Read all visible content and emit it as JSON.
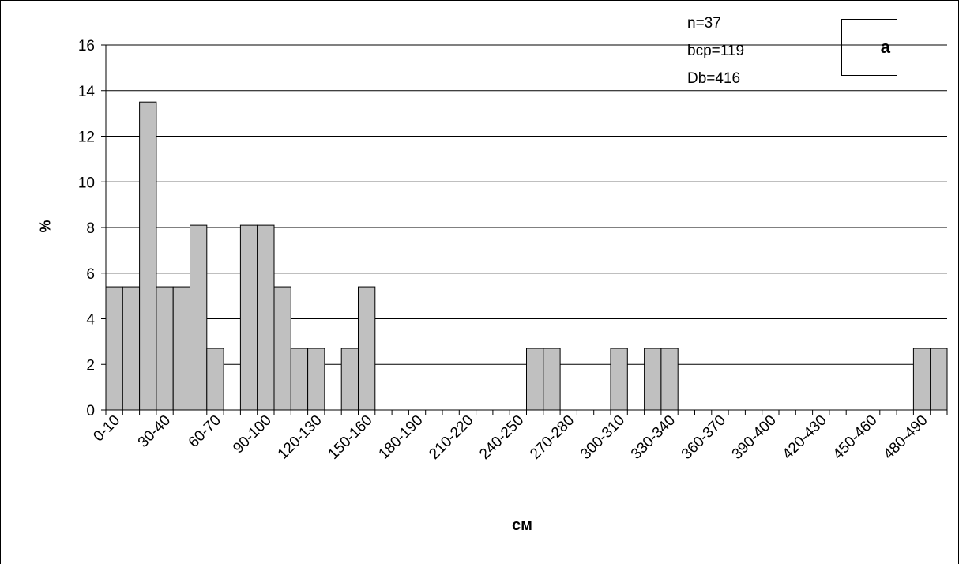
{
  "chart_data": {
    "type": "bar",
    "title": "",
    "xlabel": "см",
    "ylabel": "%",
    "ylim": [
      0,
      16
    ],
    "yticks": [
      0,
      2,
      4,
      6,
      8,
      10,
      12,
      14,
      16
    ],
    "grid": true,
    "categories": [
      "0-10",
      "10-20",
      "20-30",
      "30-40",
      "40-50",
      "50-60",
      "60-70",
      "70-80",
      "80-90",
      "90-100",
      "100-110",
      "110-120",
      "120-130",
      "130-140",
      "140-150",
      "150-160",
      "160-170",
      "170-180",
      "180-190",
      "190-200",
      "200-210",
      "210-220",
      "220-230",
      "230-240",
      "240-250",
      "250-260",
      "260-270",
      "270-280",
      "280-290",
      "290-300",
      "300-310",
      "310-320",
      "320-330",
      "330-340",
      "340-350",
      "350-360",
      "360-370",
      "370-380",
      "380-390",
      "390-400",
      "400-410",
      "410-420",
      "420-430",
      "430-440",
      "440-450",
      "450-460",
      "460-470",
      "470-480",
      "480-490",
      "490-500"
    ],
    "values": [
      5.4,
      5.4,
      13.5,
      5.4,
      5.4,
      8.1,
      2.7,
      0,
      8.1,
      8.1,
      5.4,
      2.7,
      2.7,
      0,
      2.7,
      5.4,
      0,
      0,
      0,
      0,
      0,
      0,
      0,
      0,
      0,
      2.7,
      2.7,
      0,
      0,
      0,
      2.7,
      0,
      2.7,
      2.7,
      0,
      0,
      0,
      0,
      0,
      0,
      0,
      0,
      0,
      0,
      0,
      0,
      0,
      0,
      2.7,
      2.7
    ],
    "x_tick_labels": [
      "0-10",
      "30-40",
      "60-70",
      "90-100",
      "120-130",
      "150-160",
      "180-190",
      "210-220",
      "240-250",
      "270-280",
      "300-310",
      "330-340",
      "360-370",
      "390-400",
      "420-430",
      "450-460",
      "480-490"
    ],
    "bar_color": "#c0c0c0",
    "stats": [
      "n=37",
      "bcp=119",
      "Db=416"
    ],
    "panel_label": "a"
  }
}
